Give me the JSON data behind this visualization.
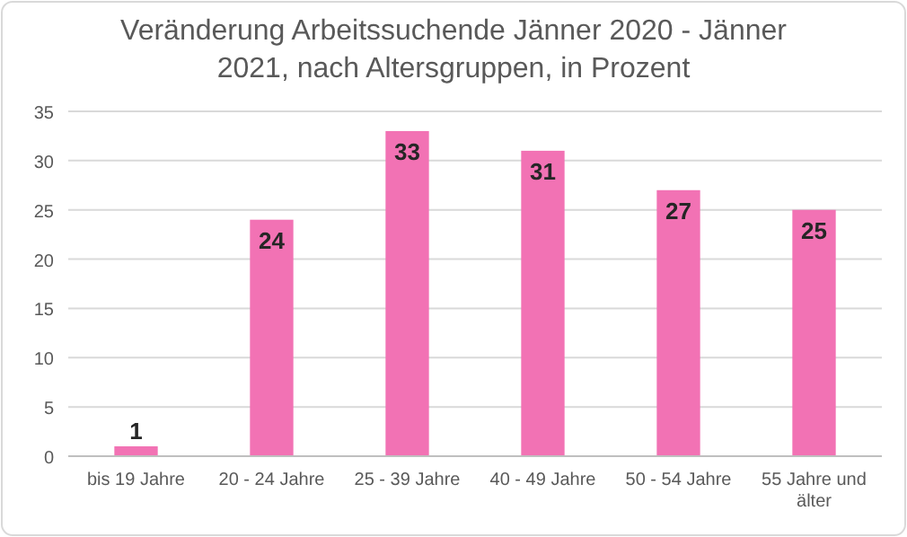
{
  "chart_data": {
    "type": "bar",
    "title": "Veränderung Arbeitssuchende Jänner 2020 - Jänner 2021, nach Altersgruppen, in Prozent",
    "categories": [
      "bis 19 Jahre",
      "20 - 24 Jahre",
      "25 - 39 Jahre",
      "40 - 49 Jahre",
      "50 - 54 Jahre",
      "55 Jahre und älter"
    ],
    "values": [
      1,
      24,
      33,
      31,
      27,
      25
    ],
    "color": "#f272b4",
    "ylim": [
      0,
      35
    ],
    "yticks": [
      0,
      5,
      10,
      15,
      20,
      25,
      30,
      35
    ],
    "grid": "y",
    "data_labels": true
  }
}
